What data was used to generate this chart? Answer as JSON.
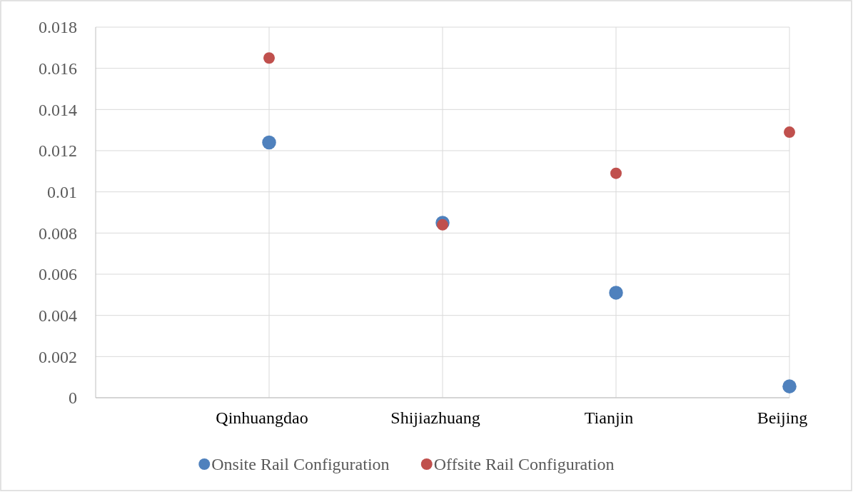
{
  "chart_data": {
    "type": "scatter",
    "categories": [
      "Qinhuangdao",
      "Shijiazhuang",
      "Tianjin",
      "Beijing"
    ],
    "series": [
      {
        "name": "Onsite Rail Configuration",
        "color": "#4f81bd",
        "values": [
          0.0124,
          0.0085,
          0.0051,
          0.00055
        ]
      },
      {
        "name": "Offsite Rail Configuration",
        "color": "#c0504d",
        "values": [
          0.0165,
          0.0084,
          0.0109,
          0.0129
        ]
      }
    ],
    "ylim": [
      0,
      0.018
    ],
    "yticks": [
      0,
      0.002,
      0.004,
      0.006,
      0.008,
      0.01,
      0.012,
      0.014,
      0.016,
      0.018
    ],
    "grid": true,
    "legend": "bottom",
    "marker": "circle"
  }
}
